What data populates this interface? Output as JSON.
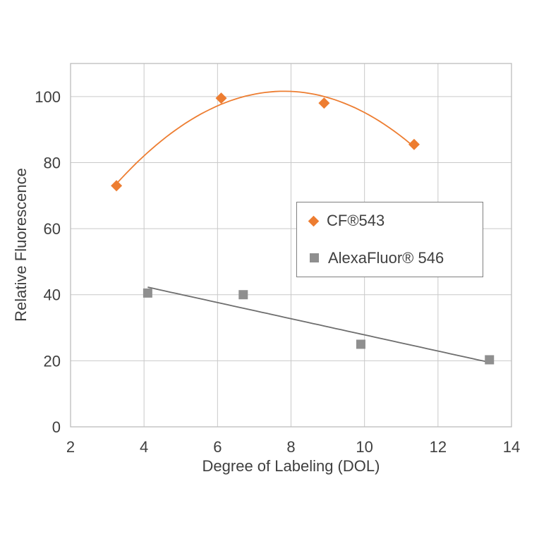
{
  "chart_data": {
    "type": "scatter",
    "title": "",
    "xlabel": "Degree of Labeling (DOL)",
    "ylabel": "Relative Fluorescence",
    "xlim": [
      2,
      14
    ],
    "ylim": [
      0,
      110
    ],
    "xticks": [
      2,
      4,
      6,
      8,
      10,
      12,
      14
    ],
    "yticks": [
      0,
      20,
      40,
      60,
      80,
      100
    ],
    "grid": true,
    "grid_color": "#C9C9C9",
    "border_color": "#BDBDBD",
    "text_color": "#3F3F3F",
    "legend_position": "center-right",
    "series": [
      {
        "name": "CF®543",
        "marker": "diamond",
        "color": "#ED7D31",
        "line_color": "#ED7D31",
        "trendline": "poly2",
        "points": [
          [
            3.25,
            73
          ],
          [
            6.1,
            99.5
          ],
          [
            8.9,
            98
          ],
          [
            11.35,
            85.5
          ]
        ]
      },
      {
        "name": "AlexaFluor® 546",
        "marker": "square",
        "color": "#8F8F8F",
        "line_color": "#6E6E6E",
        "trendline": "linear",
        "points": [
          [
            4.1,
            40.5
          ],
          [
            6.7,
            40
          ],
          [
            9.9,
            25
          ],
          [
            13.4,
            20.3
          ]
        ]
      }
    ]
  }
}
